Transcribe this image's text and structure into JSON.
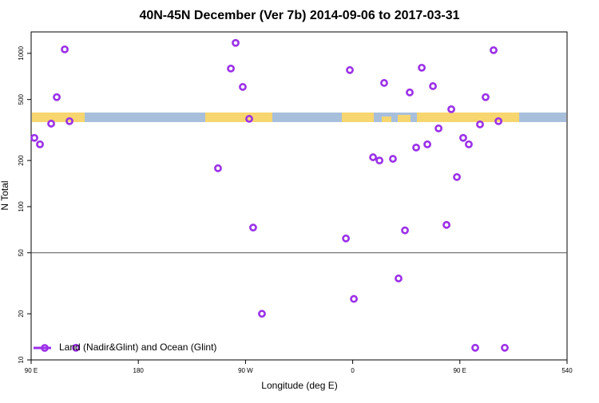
{
  "chart_data": {
    "type": "scatter",
    "title": "40N-45N December (Ver 7b)   2014-09-06 to 2017-03-31",
    "xlabel": "Longitude (deg E)",
    "ylabel": "N Total",
    "log_y": true,
    "hline": 50,
    "legend": "bottom-left",
    "xlim": [
      90,
      540
    ],
    "ylim": [
      10,
      1380
    ],
    "xticks": [
      {
        "value": 90,
        "label": "90 E"
      },
      180,
      {
        "value": 270,
        "label": "90 W"
      },
      {
        "value": 360,
        "label": "0"
      },
      {
        "value": 450,
        "label": "90 E"
      },
      540
    ],
    "yticks": [
      10,
      20,
      50,
      100,
      200,
      500,
      1000
    ],
    "series": [
      {
        "name": "Land (Nadir&Glint) and Ocean (Glint)",
        "color": "#9b30e8",
        "x": [
          92.7,
          97.4,
          106.8,
          111.5,
          118.2,
          122.2,
          127.6,
          246.9,
          257.7,
          261.7,
          267.7,
          273.1,
          276.4,
          283.8,
          354.3,
          357.6,
          361,
          377.1,
          382.5,
          386.4,
          393.8,
          398.5,
          403.9,
          407.9,
          413.3,
          418,
          422.7,
          427.4,
          432.1,
          438.8,
          442.8,
          447.5,
          452.8,
          457.5,
          462.9,
          466.9,
          471.6,
          478.3,
          482.4,
          487.7
        ],
        "values": [
          281,
          255,
          348,
          518,
          1062,
          361,
          12,
          178,
          796,
          1170,
          604,
          374,
          73,
          20,
          62,
          778,
          25,
          210,
          200,
          641,
          205,
          34,
          70,
          556,
          243,
          806,
          255,
          611,
          324,
          76,
          432,
          156,
          281,
          255,
          12,
          344,
          518,
          1049,
          361,
          12
        ]
      }
    ]
  }
}
